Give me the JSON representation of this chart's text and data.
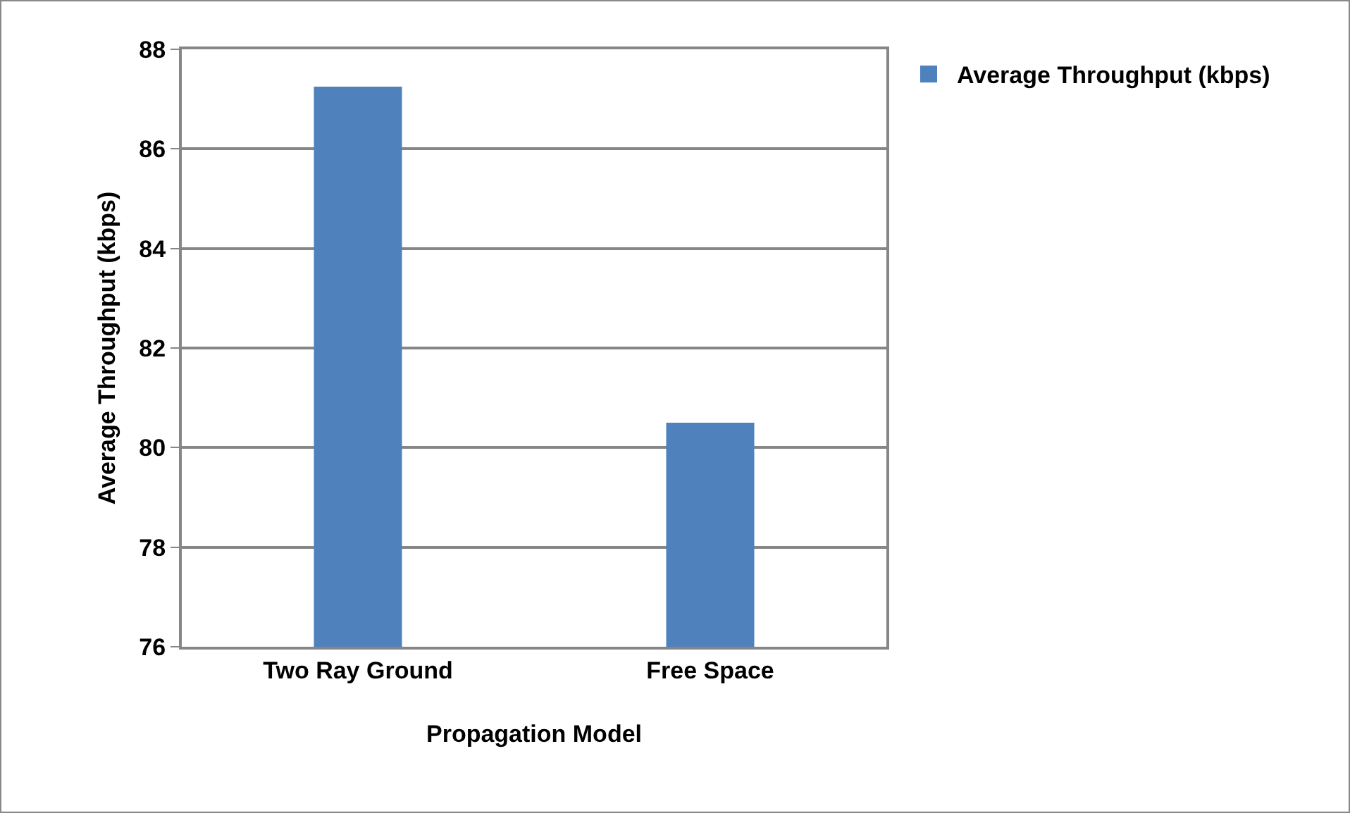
{
  "chart_data": {
    "type": "bar",
    "xlabel": "Propagation Model",
    "ylabel": "Average Throughput (kbps)",
    "categories": [
      "Two Ray Ground",
      "Free Space"
    ],
    "series": [
      {
        "name": "Average Throughput (kbps)",
        "color": "#4f81bd",
        "values": [
          87.25,
          80.5
        ]
      }
    ],
    "ylim": [
      76,
      88
    ],
    "yticks": [
      76,
      78,
      80,
      82,
      84,
      86,
      88
    ],
    "grid": true,
    "legend": "top right"
  }
}
